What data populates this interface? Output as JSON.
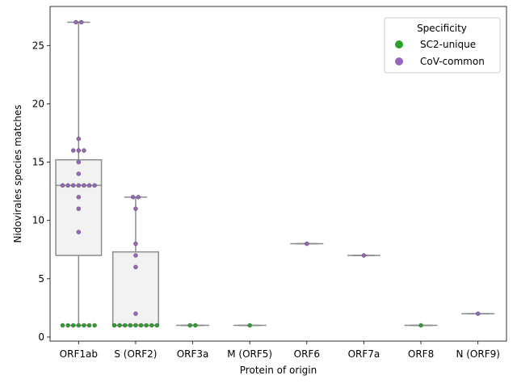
{
  "chart_data": {
    "type": "box",
    "xlabel": "Protein of origin",
    "ylabel": "Nidovirales species matches",
    "categories": [
      "ORF1ab",
      "S (ORF2)",
      "ORF3a",
      "M (ORF5)",
      "ORF6",
      "ORF7a",
      "ORF8",
      "N (ORF9)"
    ],
    "y_ticks": [
      "0",
      "5",
      "10",
      "15",
      "20",
      "25"
    ],
    "ylim": [
      -0.35,
      28.35
    ],
    "grid": false,
    "legend": {
      "title": "Specificity",
      "placement": "top-right",
      "entries": [
        {
          "label": "SC2-unique",
          "color": "#2ca02c"
        },
        {
          "label": "CoV-common",
          "color": "#9467bd"
        }
      ]
    },
    "box_style": {
      "fill": "#f2f2f2",
      "stroke": "#8c8c8c"
    },
    "boxes": [
      {
        "category": "ORF1ab",
        "min": 1,
        "q1": 7,
        "median": 13,
        "q3": 15.2,
        "max": 27
      },
      {
        "category": "S (ORF2)",
        "min": 1,
        "q1": 1,
        "median": 1,
        "q3": 7.3,
        "max": 12
      },
      {
        "category": "ORF3a",
        "min": 1,
        "q1": 1,
        "median": 1,
        "q3": 1,
        "max": 1
      },
      {
        "category": "M (ORF5)",
        "min": 1,
        "q1": 1,
        "median": 1,
        "q3": 1,
        "max": 1
      },
      {
        "category": "ORF6",
        "min": 8,
        "q1": 8,
        "median": 8,
        "q3": 8,
        "max": 8
      },
      {
        "category": "ORF7a",
        "min": 7,
        "q1": 7,
        "median": 7,
        "q3": 7,
        "max": 7
      },
      {
        "category": "ORF8",
        "min": 1,
        "q1": 1,
        "median": 1,
        "q3": 1,
        "max": 1
      },
      {
        "category": "N (ORF9)",
        "min": 2,
        "q1": 2,
        "median": 2,
        "q3": 2,
        "max": 2
      }
    ],
    "series": [
      {
        "name": "SC2-unique",
        "color": "#2ca02c",
        "points": [
          {
            "category": "ORF1ab",
            "values": [
              1,
              1,
              1,
              1,
              1,
              1,
              1
            ]
          },
          {
            "category": "S (ORF2)",
            "values": [
              1,
              1,
              1,
              1,
              1,
              1,
              1,
              1,
              1
            ]
          },
          {
            "category": "ORF3a",
            "values": [
              1,
              1
            ]
          },
          {
            "category": "M (ORF5)",
            "values": [
              1
            ]
          },
          {
            "category": "ORF8",
            "values": [
              1
            ]
          }
        ]
      },
      {
        "name": "CoV-common",
        "color": "#9467bd",
        "points": [
          {
            "category": "ORF1ab",
            "values": [
              27,
              27,
              17,
              16,
              16,
              16,
              15,
              14,
              13,
              13,
              13,
              13,
              13,
              13,
              13,
              12,
              11,
              9
            ]
          },
          {
            "category": "S (ORF2)",
            "values": [
              12,
              12,
              11,
              8,
              7,
              6,
              2
            ]
          },
          {
            "category": "ORF6",
            "values": [
              8
            ]
          },
          {
            "category": "ORF7a",
            "values": [
              7
            ]
          },
          {
            "category": "N (ORF9)",
            "values": [
              2
            ]
          }
        ]
      }
    ]
  }
}
